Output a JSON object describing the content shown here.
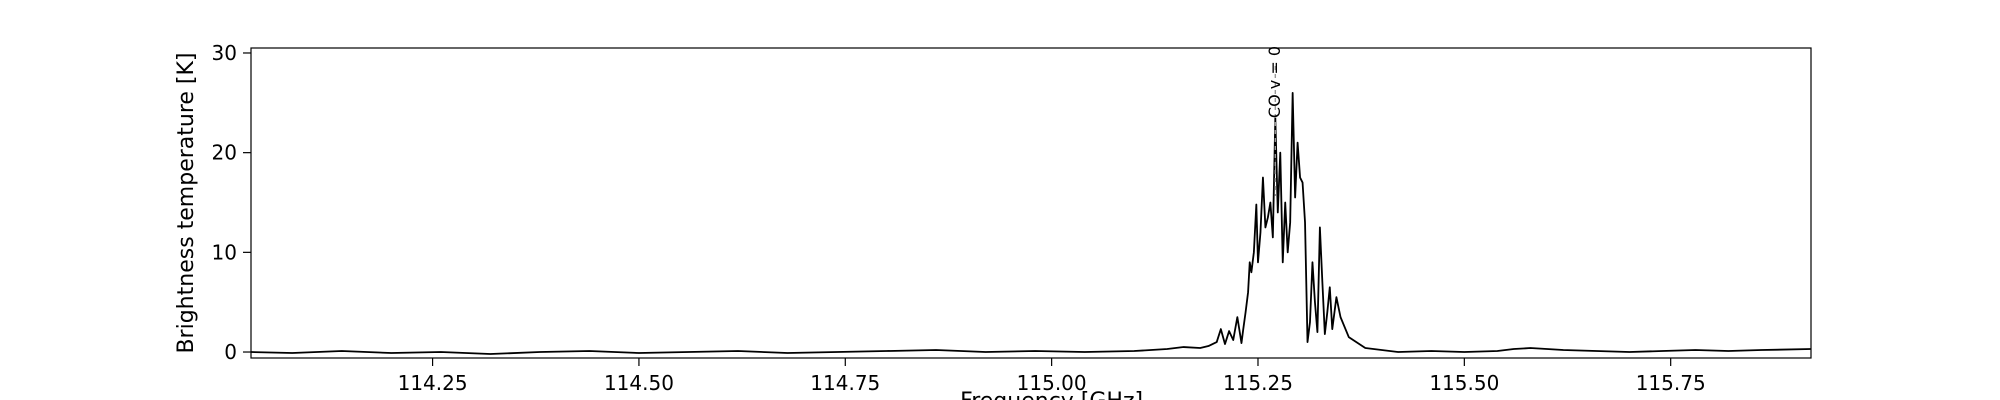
{
  "chart_data": {
    "type": "line",
    "xlabel": "Frequency [GHz]",
    "ylabel": "Brightness temperature [K]",
    "xlim": [
      114.03,
      115.92
    ],
    "ylim": [
      -0.6,
      30.5
    ],
    "x_ticks": [
      "114.25",
      "114.50",
      "114.75",
      "115.00",
      "115.25",
      "115.50",
      "115.75"
    ],
    "y_ticks": [
      "0",
      "10",
      "20",
      "30"
    ],
    "annotations": [
      {
        "text": "CO v = 0",
        "x": 115.271
      }
    ],
    "line_color": "#000000",
    "annotation_line_color": "#999999",
    "series": [
      {
        "x": [
          114.03,
          114.08,
          114.14,
          114.2,
          114.26,
          114.32,
          114.38,
          114.44,
          114.5,
          114.56,
          114.62,
          114.68,
          114.74,
          114.8,
          114.86,
          114.92,
          114.98,
          115.04,
          115.1,
          115.14,
          115.16,
          115.18,
          115.19,
          115.2,
          115.205,
          115.21,
          115.215,
          115.22,
          115.225,
          115.23,
          115.232,
          115.235,
          115.238,
          115.24,
          115.242,
          115.245,
          115.248,
          115.25,
          115.253,
          115.256,
          115.259,
          115.262,
          115.265,
          115.268,
          115.271,
          115.274,
          115.277,
          115.28,
          115.283,
          115.286,
          115.289,
          115.292,
          115.295,
          115.298,
          115.301,
          115.304,
          115.307,
          115.31,
          115.313,
          115.316,
          115.319,
          115.322,
          115.325,
          115.328,
          115.331,
          115.334,
          115.337,
          115.34,
          115.345,
          115.35,
          115.36,
          115.38,
          115.42,
          115.46,
          115.5,
          115.54,
          115.56,
          115.58,
          115.62,
          115.66,
          115.7,
          115.74,
          115.78,
          115.82,
          115.86,
          115.92
        ],
        "y": [
          0.0,
          -0.1,
          0.1,
          -0.1,
          0.0,
          -0.2,
          0.0,
          0.1,
          -0.1,
          0.0,
          0.1,
          -0.1,
          0.0,
          0.1,
          0.2,
          0.0,
          0.1,
          0.0,
          0.1,
          0.3,
          0.5,
          0.4,
          0.6,
          1.0,
          2.3,
          0.8,
          2.1,
          1.2,
          3.5,
          0.9,
          2.2,
          4.0,
          6.0,
          9.0,
          8.0,
          10.0,
          14.8,
          9.0,
          12.0,
          17.5,
          12.5,
          13.5,
          15.0,
          11.5,
          23.5,
          14.0,
          20.0,
          9.0,
          15.0,
          10.0,
          13.0,
          26.0,
          15.5,
          21.0,
          17.5,
          17.0,
          13.0,
          1.0,
          3.0,
          9.0,
          5.0,
          2.0,
          12.5,
          7.0,
          1.8,
          4.0,
          6.5,
          2.3,
          5.5,
          3.5,
          1.5,
          0.4,
          0.0,
          0.1,
          0.0,
          0.1,
          0.3,
          0.4,
          0.2,
          0.1,
          0.0,
          0.1,
          0.2,
          0.1,
          0.2,
          0.3
        ]
      }
    ]
  }
}
